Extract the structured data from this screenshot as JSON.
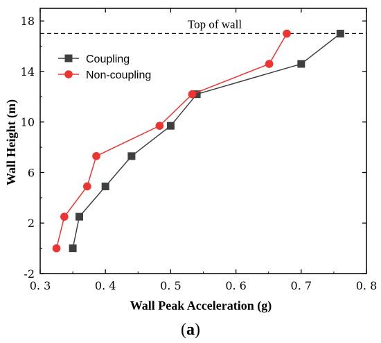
{
  "chart_data": {
    "type": "line",
    "title": "",
    "xlabel": "Wall Peak Acceleration (g)",
    "ylabel": "Wall Height (m)",
    "xlim": [
      0.3,
      0.8
    ],
    "ylim": [
      -2,
      19
    ],
    "x_ticks": [
      0.3,
      0.4,
      0.5,
      0.6,
      0.7,
      0.8
    ],
    "x_tick_labels": [
      "0. 3",
      "0. 4",
      "0. 5",
      "0. 6",
      "0. 7",
      "0. 8"
    ],
    "y_ticks": [
      -2,
      2,
      6,
      10,
      14,
      18
    ],
    "y_tick_labels": [
      "-2",
      "2",
      "6",
      "10",
      "14",
      "18"
    ],
    "grid": false,
    "legend_position": "top-left",
    "series": [
      {
        "name": "Coupling",
        "color": "#3f3f3f",
        "marker": "square",
        "x": [
          0.35,
          0.36,
          0.4,
          0.44,
          0.5,
          0.54,
          0.7,
          0.76
        ],
        "y": [
          0.0,
          2.5,
          4.9,
          7.3,
          9.7,
          12.2,
          14.6,
          17.0
        ]
      },
      {
        "name": "Non-coupling",
        "color": "#ee3333",
        "marker": "circle",
        "x": [
          0.325,
          0.337,
          0.372,
          0.386,
          0.483,
          0.533,
          0.651,
          0.678
        ],
        "y": [
          0.0,
          2.5,
          4.9,
          7.3,
          9.7,
          12.2,
          14.6,
          17.0
        ]
      }
    ],
    "annotations": [
      {
        "type": "hline",
        "y": 17.0,
        "style": "dashed",
        "label": "Top of wall"
      }
    ],
    "caption": {
      "open": "(",
      "letter": "a",
      "close": ")"
    }
  }
}
